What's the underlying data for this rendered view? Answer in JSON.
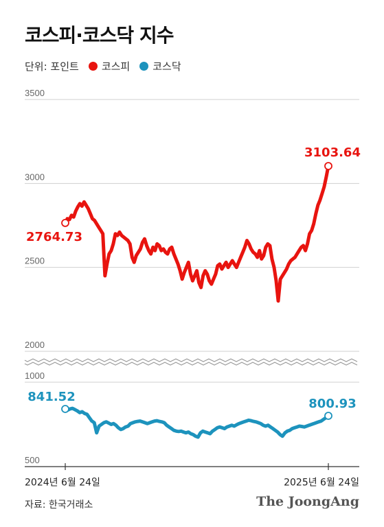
{
  "header": {
    "title": "코스피·코스닥 지수"
  },
  "legend": {
    "unit": "단위: 포인트",
    "items": [
      {
        "label": "코스피",
        "color": "#e8140f"
      },
      {
        "label": "코스닥",
        "color": "#1d93bd"
      }
    ]
  },
  "footer": {
    "source": "자료: 한국거래소",
    "brand": "The JoongAng"
  },
  "chart_data": [
    {
      "type": "line",
      "name": "코스피",
      "color": "#e8140f",
      "ylim": [
        2000,
        3500
      ],
      "yticks": [
        "3500",
        "3000",
        "2500",
        "2000"
      ],
      "x_labels": [
        "2024년 6월 24일",
        "2025년 6월 24일"
      ],
      "start_label": "2764.73",
      "end_label": "3103.64",
      "values": [
        2764.73,
        2790,
        2785,
        2810,
        2800,
        2835,
        2860,
        2880,
        2865,
        2890,
        2870,
        2850,
        2820,
        2790,
        2780,
        2760,
        2740,
        2720,
        2700,
        2450,
        2520,
        2580,
        2600,
        2640,
        2700,
        2690,
        2710,
        2690,
        2680,
        2670,
        2660,
        2640,
        2560,
        2530,
        2570,
        2590,
        2610,
        2650,
        2670,
        2630,
        2600,
        2580,
        2620,
        2600,
        2640,
        2630,
        2600,
        2610,
        2590,
        2580,
        2610,
        2620,
        2580,
        2550,
        2520,
        2480,
        2430,
        2470,
        2500,
        2530,
        2460,
        2420,
        2450,
        2480,
        2410,
        2380,
        2450,
        2480,
        2460,
        2420,
        2400,
        2430,
        2460,
        2510,
        2520,
        2490,
        2510,
        2530,
        2500,
        2520,
        2540,
        2520,
        2500,
        2530,
        2560,
        2590,
        2620,
        2660,
        2640,
        2610,
        2590,
        2580,
        2560,
        2600,
        2550,
        2570,
        2620,
        2640,
        2630,
        2550,
        2500,
        2420,
        2300,
        2430,
        2450,
        2470,
        2490,
        2520,
        2540,
        2550,
        2560,
        2580,
        2600,
        2620,
        2630,
        2600,
        2640,
        2700,
        2720,
        2760,
        2820,
        2870,
        2900,
        2940,
        2980,
        3040,
        3103.64
      ]
    },
    {
      "type": "line",
      "name": "코스닥",
      "color": "#1d93bd",
      "ylim": [
        500,
        1000
      ],
      "yticks": [
        "1000",
        "500"
      ],
      "start_label": "841.52",
      "end_label": "800.93",
      "values": [
        841.52,
        835,
        842,
        845,
        838,
        830,
        820,
        825,
        815,
        810,
        790,
        770,
        760,
        700,
        740,
        750,
        760,
        765,
        758,
        750,
        755,
        745,
        730,
        720,
        725,
        735,
        740,
        755,
        760,
        765,
        768,
        770,
        765,
        760,
        755,
        760,
        765,
        770,
        772,
        768,
        765,
        760,
        745,
        735,
        725,
        715,
        710,
        708,
        710,
        705,
        700,
        705,
        695,
        690,
        680,
        675,
        700,
        710,
        705,
        700,
        695,
        710,
        720,
        730,
        735,
        730,
        725,
        735,
        740,
        745,
        740,
        748,
        755,
        760,
        765,
        770,
        775,
        772,
        768,
        765,
        760,
        755,
        745,
        740,
        745,
        735,
        725,
        715,
        705,
        690,
        680,
        700,
        710,
        715,
        725,
        730,
        735,
        740,
        738,
        735,
        740,
        745,
        750,
        755,
        760,
        765,
        770,
        780,
        790,
        800.93
      ]
    }
  ]
}
